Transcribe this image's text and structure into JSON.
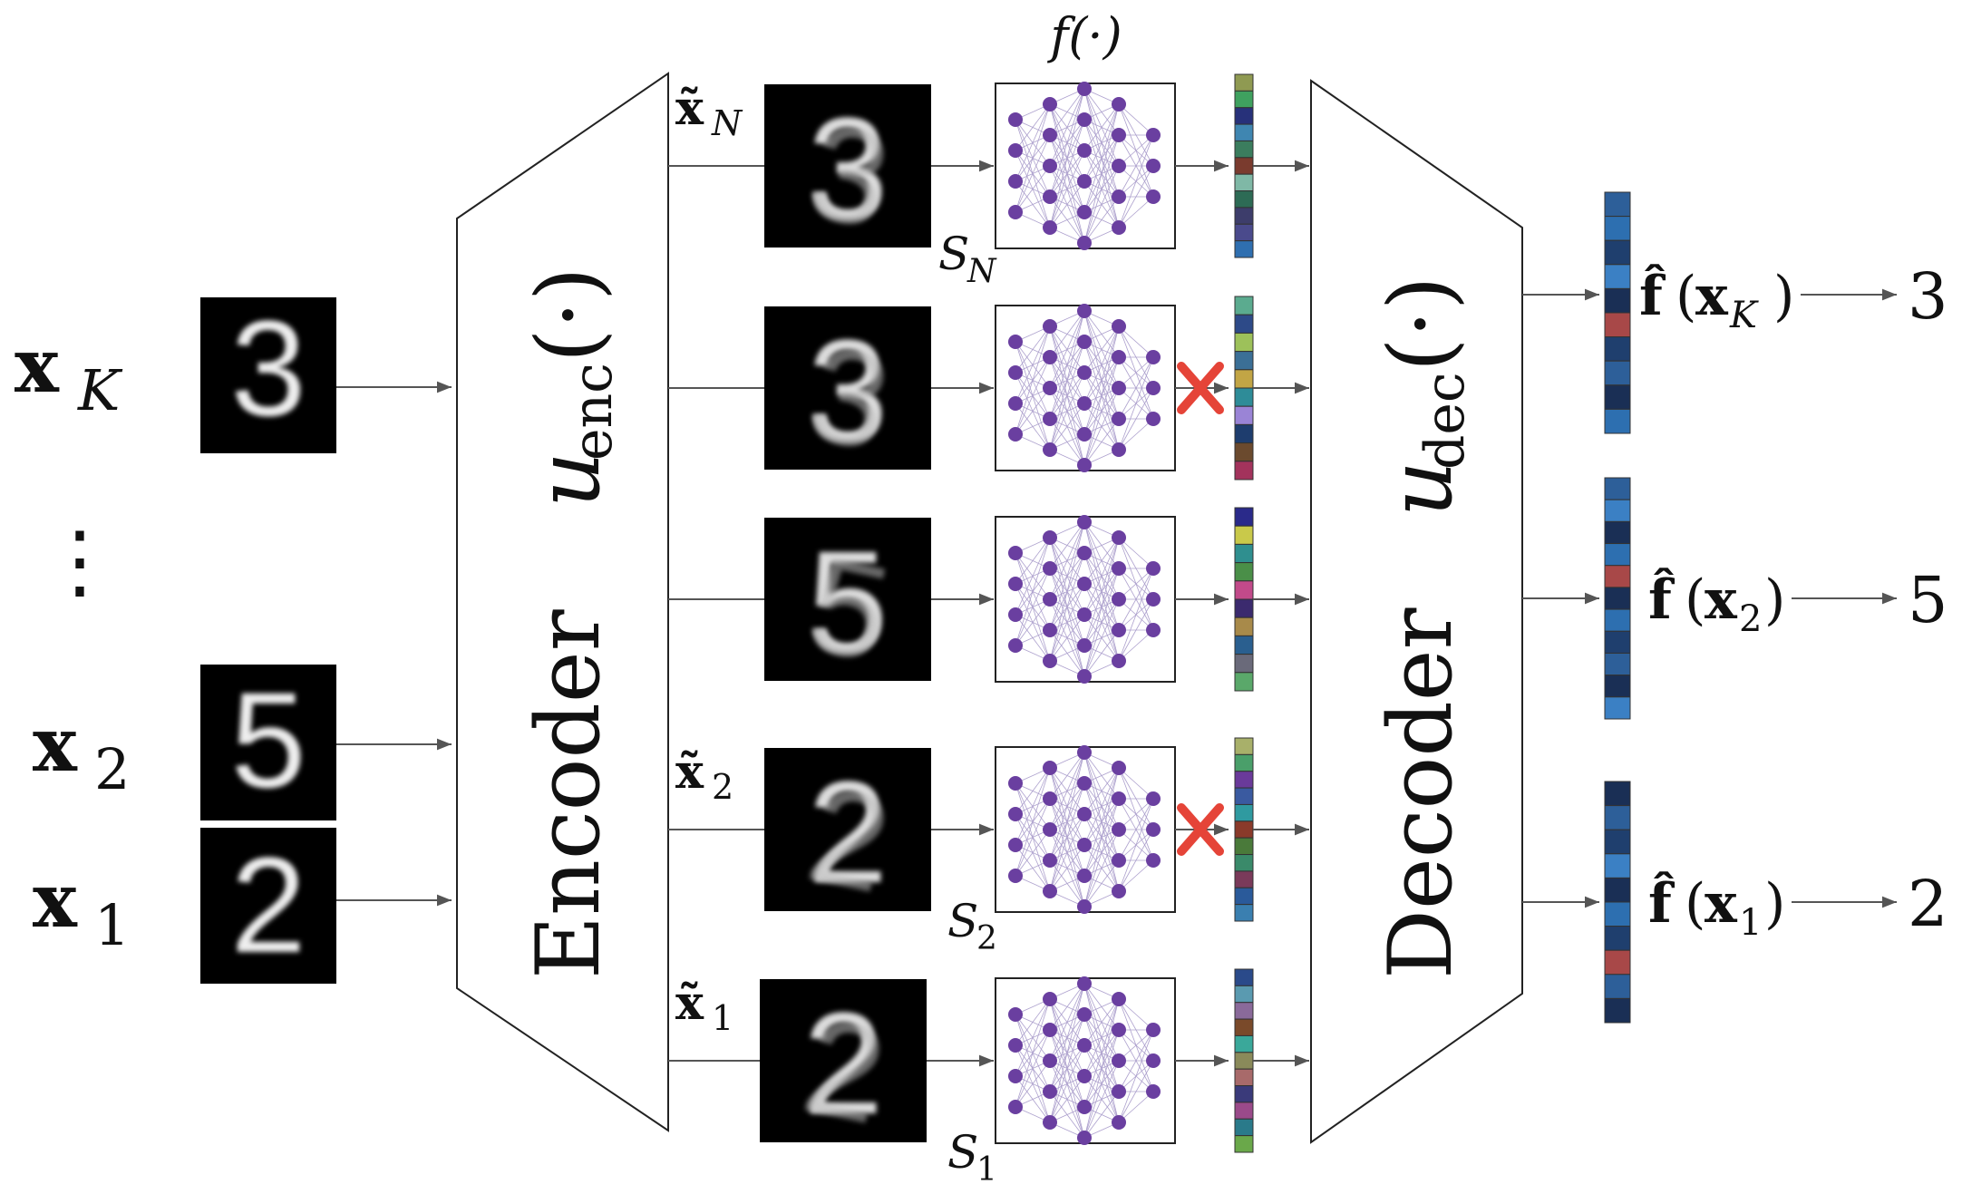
{
  "inputs": {
    "top": {
      "base": "x",
      "sub": "K",
      "digit": "3"
    },
    "dots": "⋮",
    "mid": {
      "base": "x",
      "sub": "2",
      "digit": "5"
    },
    "bottom": {
      "base": "x",
      "sub": "1",
      "digit": "2"
    }
  },
  "encoder": {
    "word": "Encoder",
    "fn": "u",
    "fn_sub": "enc",
    "arg": "(·)"
  },
  "decoder": {
    "word": "Decoder",
    "fn": "u",
    "fn_sub": "dec",
    "arg": "(·)"
  },
  "model_label": "f(·)",
  "branches": [
    {
      "digit": "3",
      "xlabel_base": "x̃",
      "xlabel_sub": "N",
      "slabel_base": "S",
      "slabel_sub": "N",
      "blocked": false,
      "colors": [
        "#8f9a52",
        "#3fa15f",
        "#27317a",
        "#3f86b1",
        "#3b7d5e",
        "#7a3b2e",
        "#7fb8a6",
        "#2d6b55",
        "#3d3d6b",
        "#4a4a8c",
        "#2f6fb0"
      ]
    },
    {
      "digit": "3",
      "xlabel_base": "",
      "xlabel_sub": "",
      "slabel_base": "",
      "slabel_sub": "",
      "blocked": true,
      "colors": [
        "#5bab8f",
        "#2d4a88",
        "#9dc15a",
        "#3b6f96",
        "#c2a545",
        "#2e8c98",
        "#9a84d6",
        "#1e3d6e",
        "#6b4a2e",
        "#a3335c"
      ]
    },
    {
      "digit": "5",
      "xlabel_base": "",
      "xlabel_sub": "",
      "slabel_base": "",
      "slabel_sub": "",
      "blocked": false,
      "colors": [
        "#2a2a8a",
        "#c9c94a",
        "#2f8f8f",
        "#4a8f48",
        "#c24a8a",
        "#3b2a6e",
        "#a88a4a",
        "#2a5f8f",
        "#6a6a7a",
        "#5aa86a"
      ]
    },
    {
      "digit": "2",
      "xlabel_base": "x̃",
      "xlabel_sub": "2",
      "slabel_base": "S",
      "slabel_sub": "2",
      "blocked": true,
      "colors": [
        "#a8b06a",
        "#4a9f6a",
        "#6a3a9a",
        "#3a5aa0",
        "#2f9aa0",
        "#8a3a2a",
        "#4a7a3a",
        "#3a8a6a",
        "#7a3a5a",
        "#2a5a9a",
        "#3a7fb0"
      ]
    },
    {
      "digit": "2",
      "xlabel_base": "x̃",
      "xlabel_sub": "1",
      "slabel_base": "S",
      "slabel_sub": "1",
      "blocked": false,
      "colors": [
        "#2a4a8a",
        "#5a9ab0",
        "#8a6a9a",
        "#7a4a2a",
        "#3aa89a",
        "#8a8a5a",
        "#a86a6a",
        "#3a3a7a",
        "#9a4a8a",
        "#2a7a8a",
        "#6aa84a"
      ]
    }
  ],
  "outputs": [
    {
      "label_base": "f̂",
      "label_arg_base": "x",
      "label_arg_sub": "K",
      "arrow_text": "3",
      "colors": [
        "#2d5f99",
        "#2d6fb0",
        "#1f3f6e",
        "#3b80c4",
        "#1a2f55",
        "#a84848",
        "#1f3f6e",
        "#2d5f99",
        "#1a2f55",
        "#2d6fb0"
      ]
    },
    {
      "label_base": "f̂",
      "label_arg_base": "x",
      "label_arg_sub": "2",
      "arrow_text": "5",
      "colors": [
        "#2d5f99",
        "#3b80c4",
        "#1a2f55",
        "#2d6fb0",
        "#a84848",
        "#1a2f55",
        "#2d6fb0",
        "#1f3f6e",
        "#2d5f99",
        "#1a2f55",
        "#3b80c4"
      ]
    },
    {
      "label_base": "f̂",
      "label_arg_base": "x",
      "label_arg_sub": "1",
      "arrow_text": "2",
      "colors": [
        "#1a2f55",
        "#2d5f99",
        "#1f3f6e",
        "#3b80c4",
        "#1a2f55",
        "#2d6fb0",
        "#1f3f6e",
        "#a84848",
        "#2d5f99",
        "#1a2f55"
      ]
    }
  ]
}
